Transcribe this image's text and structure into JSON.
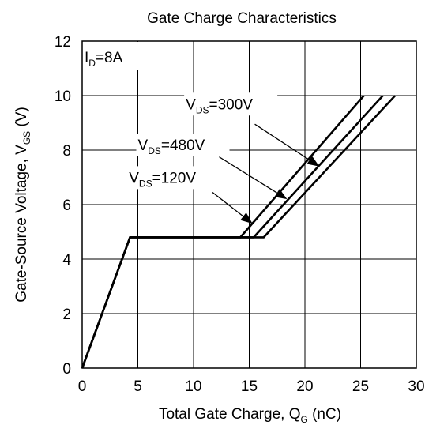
{
  "chart_data": {
    "type": "line",
    "title": "Gate Charge Characteristics",
    "xlabel": {
      "main": "Total Gate Charge, Q",
      "sub": "G",
      "unit": " (nC)"
    },
    "ylabel": {
      "main": "Gate-Source Voltage, V",
      "sub": "GS",
      "unit": " (V)"
    },
    "xlim": [
      0,
      30
    ],
    "ylim": [
      0,
      12
    ],
    "xticks": [
      0,
      5,
      10,
      15,
      20,
      25,
      30
    ],
    "yticks": [
      0,
      2,
      4,
      6,
      8,
      10,
      12
    ],
    "grid": true,
    "condition": {
      "main": "I",
      "sub": "D",
      "rest": "=8A"
    },
    "series": [
      {
        "label_main": "V",
        "label_sub": "DS",
        "label_rest": "=120V",
        "points": [
          [
            0,
            0
          ],
          [
            4.3,
            4.8
          ],
          [
            14.2,
            4.8
          ],
          [
            25.3,
            10
          ]
        ]
      },
      {
        "label_main": "V",
        "label_sub": "DS",
        "label_rest": "=300V",
        "points": [
          [
            0,
            0
          ],
          [
            4.3,
            4.8
          ],
          [
            15.4,
            4.8
          ],
          [
            27.0,
            10
          ]
        ]
      },
      {
        "label_main": "V",
        "label_sub": "DS",
        "label_rest": "=480V",
        "points": [
          [
            0,
            0
          ],
          [
            4.3,
            4.8
          ],
          [
            16.3,
            4.8
          ],
          [
            28.1,
            10
          ]
        ]
      }
    ],
    "annotations": [
      {
        "series": 0,
        "text_at": [
          4.2,
          6.8
        ],
        "arrow_from": [
          11.7,
          6.45
        ],
        "arrow_to": [
          15.3,
          5.3
        ]
      },
      {
        "series": 1,
        "text_at": [
          9.3,
          9.5
        ],
        "arrow_from": [
          15.5,
          8.95
        ],
        "arrow_to": [
          21.3,
          7.4
        ]
      },
      {
        "series": 2,
        "text_at": [
          5.0,
          8.0
        ],
        "arrow_from": [
          12.3,
          7.75
        ],
        "arrow_to": [
          18.4,
          6.2
        ]
      }
    ]
  }
}
